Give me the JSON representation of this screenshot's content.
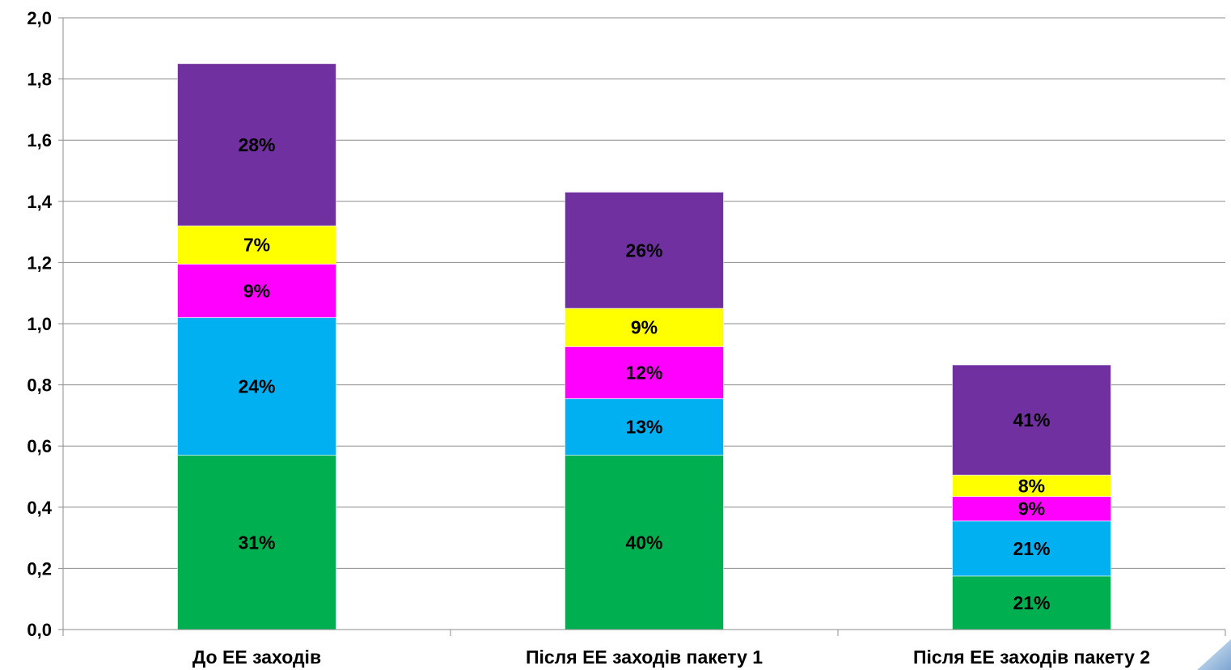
{
  "chart_data": {
    "type": "bar",
    "stacked": true,
    "categories": [
      "До ЕЕ заходів",
      "Після ЕЕ заходів пакету 1",
      "Після ЕЕ заходів пакету 2"
    ],
    "ylim": [
      0,
      2.0
    ],
    "yticks": [
      "0,0",
      "0,2",
      "0,4",
      "0,6",
      "0,8",
      "1,0",
      "1,2",
      "1,4",
      "1,6",
      "1,8",
      "2,0"
    ],
    "grid": true,
    "legend": "none",
    "series": [
      {
        "color": "#00b050",
        "values": [
          0.57,
          0.57,
          0.175
        ],
        "labels": [
          "31%",
          "40%",
          "21%"
        ]
      },
      {
        "color": "#00b0f0",
        "values": [
          0.45,
          0.185,
          0.18
        ],
        "labels": [
          "24%",
          "13%",
          "21%"
        ]
      },
      {
        "color": "#ff00ff",
        "values": [
          0.175,
          0.17,
          0.08
        ],
        "labels": [
          "9%",
          "12%",
          "9%"
        ]
      },
      {
        "color": "#ffff00",
        "values": [
          0.125,
          0.125,
          0.07
        ],
        "labels": [
          "7%",
          "9%",
          "8%"
        ]
      },
      {
        "color": "#7030a0",
        "values": [
          0.53,
          0.38,
          0.36
        ],
        "labels": [
          "28%",
          "26%",
          "41%"
        ]
      }
    ]
  }
}
